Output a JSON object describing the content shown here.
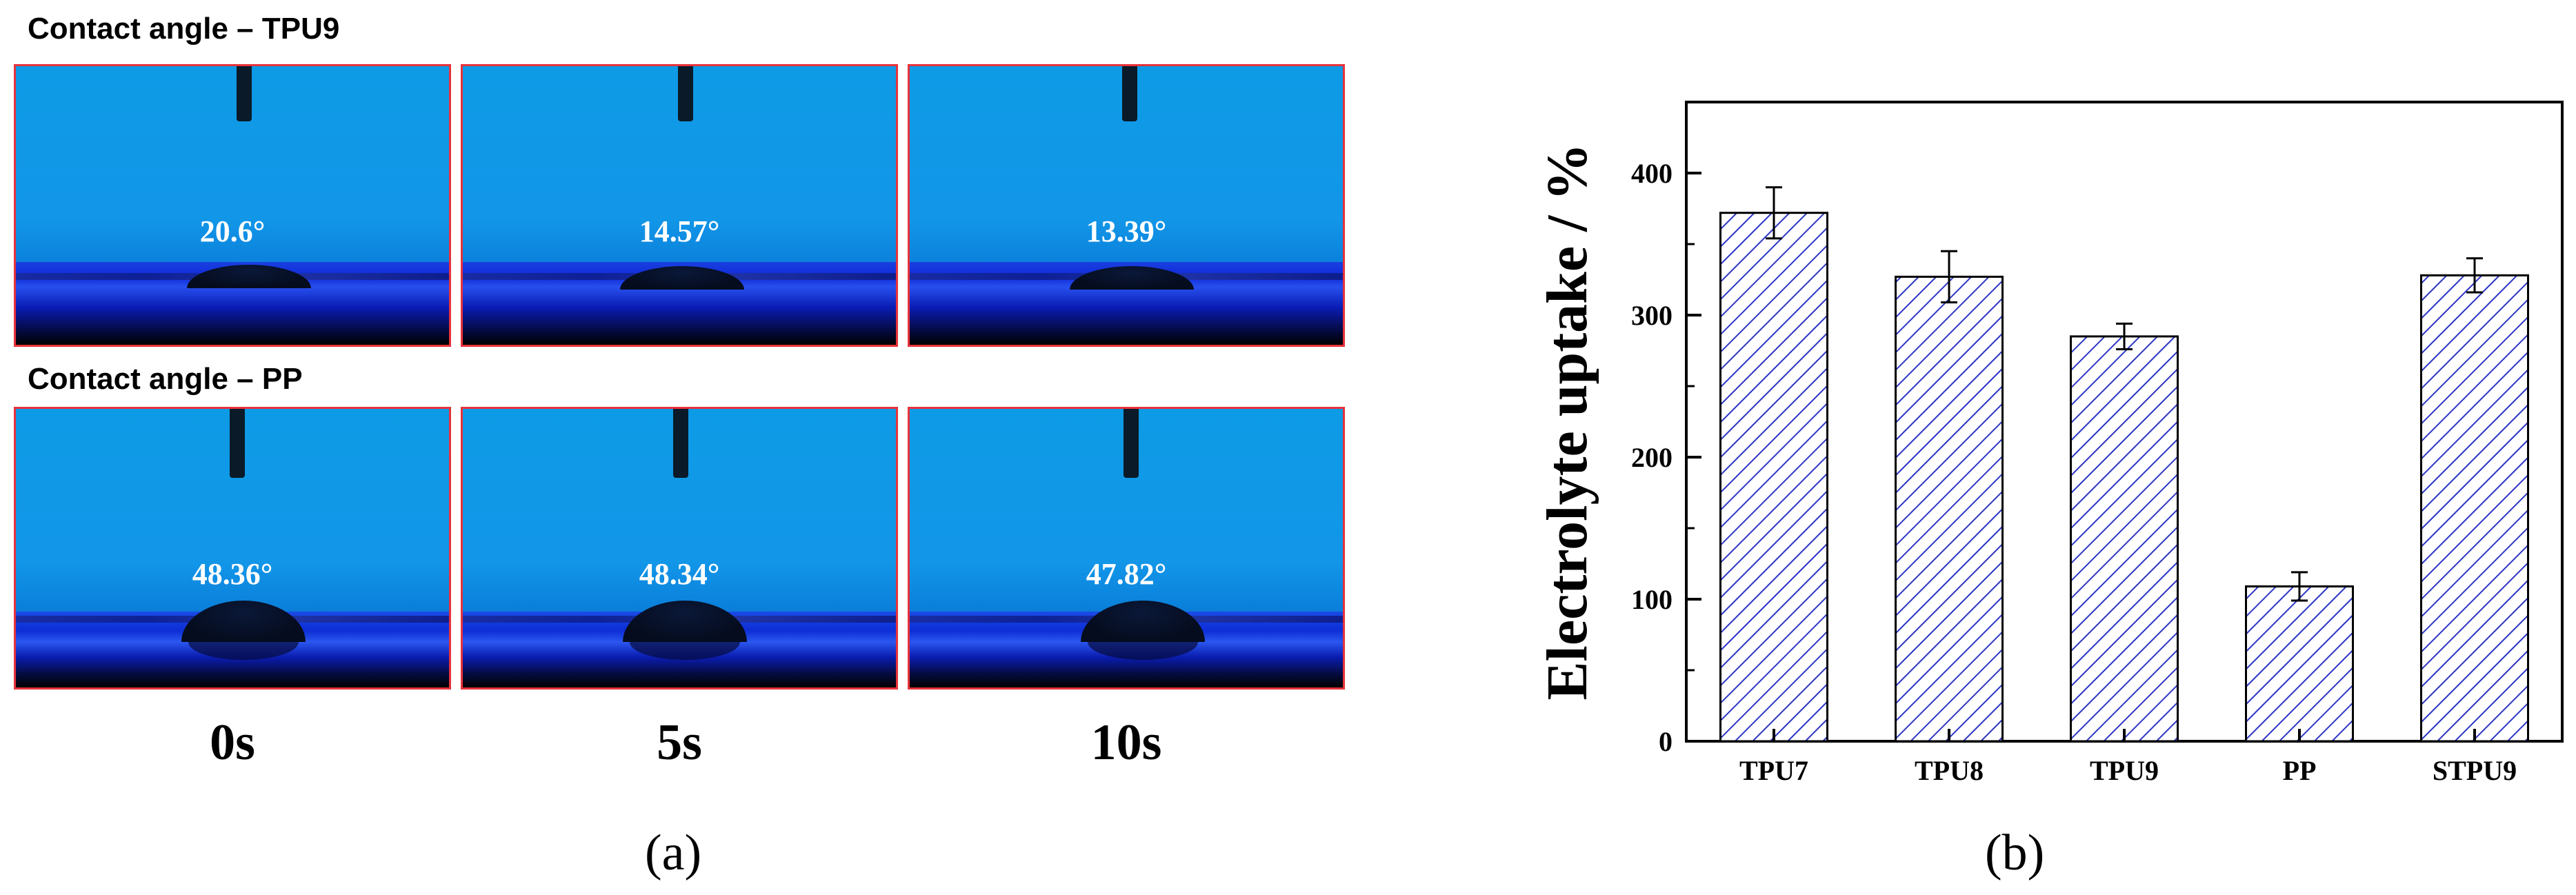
{
  "panel_a": {
    "rows": [
      {
        "title": "Contact angle – TPU9",
        "angles": [
          "20.6°",
          "14.57°",
          "13.39°"
        ]
      },
      {
        "title": "Contact angle – PP",
        "angles": [
          "48.36°",
          "48.34°",
          "47.82°"
        ]
      }
    ],
    "times": [
      "0s",
      "5s",
      "10s"
    ],
    "label": "(a)"
  },
  "panel_b": {
    "label": "(b)"
  },
  "colors": {
    "bar_hatch": "#2b34c4",
    "photo_border": "#e8323a",
    "background_blue": "#1296e8"
  },
  "chart_data": {
    "type": "bar",
    "title": "",
    "xlabel": "",
    "ylabel": "Electrolyte uptake / %",
    "categories": [
      "TPU7",
      "TPU8",
      "TPU9",
      "PP",
      "STPU9"
    ],
    "values": [
      372,
      327,
      285,
      109,
      328
    ],
    "errors": [
      18,
      18,
      9,
      10,
      12
    ],
    "ylim": [
      0,
      450
    ],
    "yticks": [
      0,
      100,
      200,
      300,
      400
    ],
    "grid": false,
    "legend": "none",
    "fill": "diagonal hatch"
  }
}
